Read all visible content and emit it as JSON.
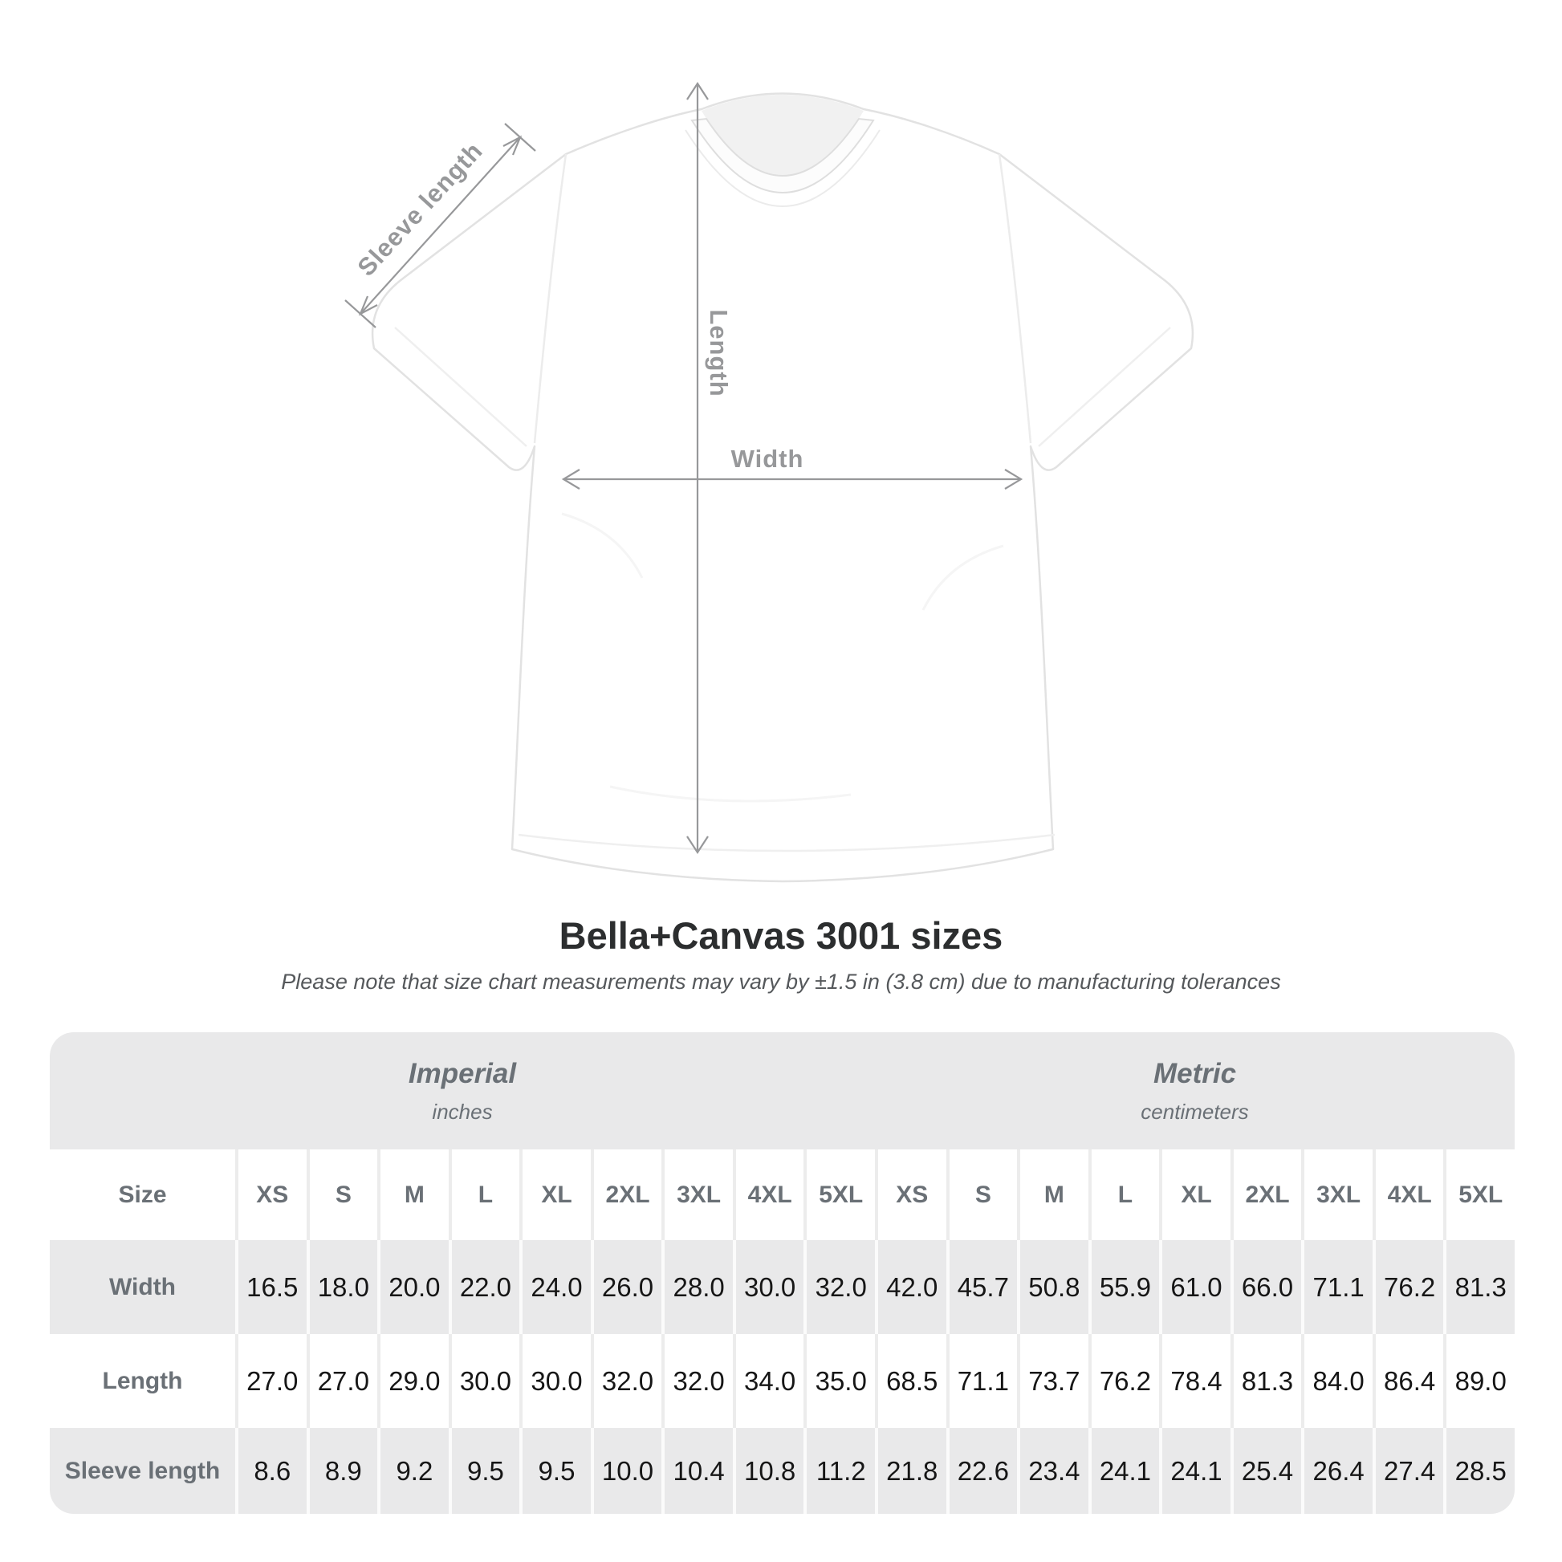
{
  "diagram": {
    "sleeve_length_label": "Sleeve length",
    "length_label": "Length",
    "width_label": "Width"
  },
  "header": {
    "title": "Bella+Canvas 3001 sizes",
    "subtitle": "Please note that size chart measurements may vary by ±1.5 in (3.8 cm) due to manufacturing tolerances"
  },
  "size_table": {
    "unit_groups": [
      {
        "name": "Imperial",
        "unit": "inches"
      },
      {
        "name": "Metric",
        "unit": "centimeters"
      }
    ],
    "size_column_label": "Size",
    "sizes": [
      "XS",
      "S",
      "M",
      "L",
      "XL",
      "2XL",
      "3XL",
      "4XL",
      "5XL"
    ],
    "rows": [
      {
        "label": "Width",
        "imperial": [
          "16.5",
          "18.0",
          "20.0",
          "22.0",
          "24.0",
          "26.0",
          "28.0",
          "30.0",
          "32.0"
        ],
        "metric": [
          "42.0",
          "45.7",
          "50.8",
          "55.9",
          "61.0",
          "66.0",
          "71.1",
          "76.2",
          "81.3"
        ]
      },
      {
        "label": "Length",
        "imperial": [
          "27.0",
          "27.0",
          "29.0",
          "30.0",
          "30.0",
          "32.0",
          "32.0",
          "34.0",
          "35.0"
        ],
        "metric": [
          "68.5",
          "71.1",
          "73.7",
          "76.2",
          "78.4",
          "81.3",
          "84.0",
          "86.4",
          "89.0"
        ]
      },
      {
        "label": "Sleeve length",
        "imperial": [
          "8.6",
          "8.9",
          "9.2",
          "9.5",
          "9.5",
          "10.0",
          "10.4",
          "10.8",
          "11.2"
        ],
        "metric": [
          "21.8",
          "22.6",
          "23.4",
          "24.1",
          "24.1",
          "25.4",
          "26.4",
          "27.4",
          "28.5"
        ]
      }
    ]
  },
  "colors": {
    "table_bg": "#e9e9ea",
    "row_alt_bg": "#ffffff",
    "annotation_gray": "#97989a",
    "header_text": "#6a7076",
    "value_text": "#161616",
    "title_text": "#2c2e2f",
    "subtitle_text": "#55585b",
    "shirt_outline": "#e2e2e2"
  }
}
